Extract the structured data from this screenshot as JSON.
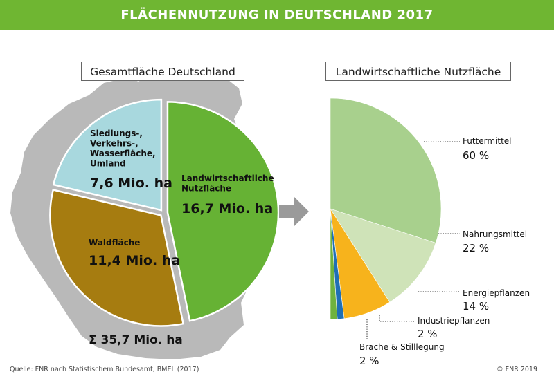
{
  "title": "FLÄCHENNUTZUNG IN DEUTSCHLAND 2017",
  "colors": {
    "green_header": "#6fb632",
    "map_gray": "#b9b9b9",
    "arrow_gray": "#9a9a9a"
  },
  "chart_data": [
    {
      "type": "pie",
      "title": "Gesamtfläche Deutschland",
      "total_label": "Σ 35,7 Mio. ha",
      "slices": [
        {
          "label_lines": [
            "Landwirtschaftliche",
            "Nutzfläche"
          ],
          "value_label": "16,7 Mio. ha",
          "value": 16.7,
          "color": "#66b234"
        },
        {
          "label_lines": [
            "Waldfläche"
          ],
          "value_label": "11,4 Mio. ha",
          "value": 11.4,
          "color": "#a67c10"
        },
        {
          "label_lines": [
            "Siedlungs-,",
            "Verkehrs-,",
            "Wasserfläche,",
            "Umland"
          ],
          "value_label": "7,6 Mio. ha",
          "value": 7.6,
          "color": "#a8d8de"
        }
      ]
    },
    {
      "type": "pie",
      "title": "Landwirtschaftliche Nutzfläche",
      "slices": [
        {
          "label": "Futtermittel",
          "value_label": "60 %",
          "value": 60,
          "color": "#a8d08d"
        },
        {
          "label": "Nahrungsmittel",
          "value_label": "22 %",
          "value": 22,
          "color": "#cfe3b8"
        },
        {
          "label": "Energiepflanzen",
          "value_label": "14 %",
          "value": 14,
          "color": "#f7b31c"
        },
        {
          "label": "Industriepflanzen",
          "value_label": "2 %",
          "value": 2,
          "color": "#1f6fb5"
        },
        {
          "label": "Brache & Stilllegung",
          "value_label": "2 %",
          "value": 2,
          "color": "#6fb23f"
        }
      ]
    }
  ],
  "footer": {
    "source": "Quelle: FNR nach Statistischem Bundesamt, BMEL (2017)",
    "copyright": "© FNR 2019"
  }
}
